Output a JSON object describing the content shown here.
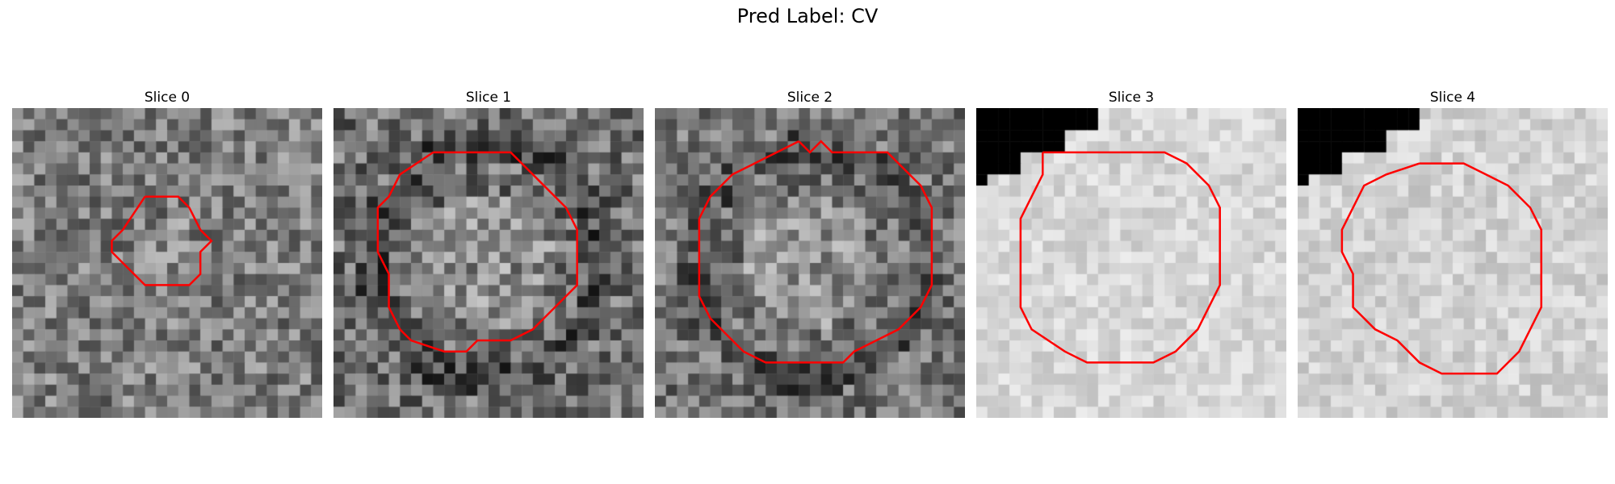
{
  "figure": {
    "title": "Pred Label: CV",
    "contour_color": "#ff0000"
  },
  "slices": [
    {
      "label": "Slice 0",
      "base_gray": 125,
      "contrast": 55,
      "corner_mask": false,
      "contour": [
        [
          12,
          8
        ],
        [
          15,
          8
        ],
        [
          16,
          9
        ],
        [
          17,
          11
        ],
        [
          18,
          12
        ],
        [
          17,
          13
        ],
        [
          17,
          15
        ],
        [
          16,
          16
        ],
        [
          12,
          16
        ],
        [
          10,
          14
        ],
        [
          9,
          13
        ],
        [
          9,
          12
        ],
        [
          10,
          11
        ],
        [
          12,
          8
        ]
      ]
    },
    {
      "label": "Slice 1",
      "base_gray": 110,
      "contrast": 60,
      "corner_mask": false,
      "contour": [
        [
          9,
          4
        ],
        [
          16,
          4
        ],
        [
          18,
          6
        ],
        [
          20,
          8
        ],
        [
          21,
          9
        ],
        [
          22,
          11
        ],
        [
          22,
          16
        ],
        [
          18,
          20
        ],
        [
          16,
          21
        ],
        [
          13,
          21
        ],
        [
          12,
          22
        ],
        [
          10,
          22
        ],
        [
          7,
          21
        ],
        [
          6,
          20
        ],
        [
          5,
          18
        ],
        [
          5,
          15
        ],
        [
          4,
          13
        ],
        [
          4,
          9
        ],
        [
          5,
          8
        ],
        [
          6,
          6
        ],
        [
          9,
          4
        ]
      ]
    },
    {
      "label": "Slice 2",
      "base_gray": 115,
      "contrast": 55,
      "corner_mask": false,
      "contour": [
        [
          13,
          3
        ],
        [
          14,
          4
        ],
        [
          15,
          3
        ],
        [
          16,
          4
        ],
        [
          21,
          4
        ],
        [
          22,
          5
        ],
        [
          24,
          7
        ],
        [
          25,
          9
        ],
        [
          25,
          16
        ],
        [
          24,
          18
        ],
        [
          23,
          19
        ],
        [
          22,
          20
        ],
        [
          20,
          21
        ],
        [
          18,
          22
        ],
        [
          17,
          23
        ],
        [
          10,
          23
        ],
        [
          8,
          22
        ],
        [
          7,
          21
        ],
        [
          5,
          19
        ],
        [
          4,
          17
        ],
        [
          4,
          15
        ],
        [
          4,
          12
        ],
        [
          4,
          10
        ],
        [
          5,
          8
        ],
        [
          7,
          6
        ],
        [
          9,
          5
        ],
        [
          11,
          4
        ],
        [
          13,
          3
        ]
      ]
    },
    {
      "label": "Slice 3",
      "base_gray": 215,
      "contrast": 22,
      "corner_mask": true,
      "contour": [
        [
          6,
          4
        ],
        [
          17,
          4
        ],
        [
          19,
          5
        ],
        [
          21,
          7
        ],
        [
          22,
          9
        ],
        [
          22,
          16
        ],
        [
          21,
          18
        ],
        [
          20,
          20
        ],
        [
          18,
          22
        ],
        [
          16,
          23
        ],
        [
          10,
          23
        ],
        [
          8,
          22
        ],
        [
          5,
          20
        ],
        [
          4,
          18
        ],
        [
          4,
          10
        ],
        [
          5,
          8
        ],
        [
          6,
          6
        ],
        [
          6,
          4
        ]
      ]
    },
    {
      "label": "Slice 4",
      "base_gray": 210,
      "contrast": 24,
      "corner_mask": true,
      "contour": [
        [
          11,
          5
        ],
        [
          15,
          5
        ],
        [
          17,
          6
        ],
        [
          19,
          7
        ],
        [
          21,
          9
        ],
        [
          22,
          11
        ],
        [
          22,
          18
        ],
        [
          21,
          20
        ],
        [
          20,
          22
        ],
        [
          18,
          24
        ],
        [
          13,
          24
        ],
        [
          11,
          23
        ],
        [
          9,
          21
        ],
        [
          7,
          20
        ],
        [
          5,
          18
        ],
        [
          5,
          15
        ],
        [
          4,
          13
        ],
        [
          4,
          11
        ],
        [
          5,
          9
        ],
        [
          6,
          7
        ],
        [
          8,
          6
        ],
        [
          11,
          5
        ]
      ]
    }
  ]
}
